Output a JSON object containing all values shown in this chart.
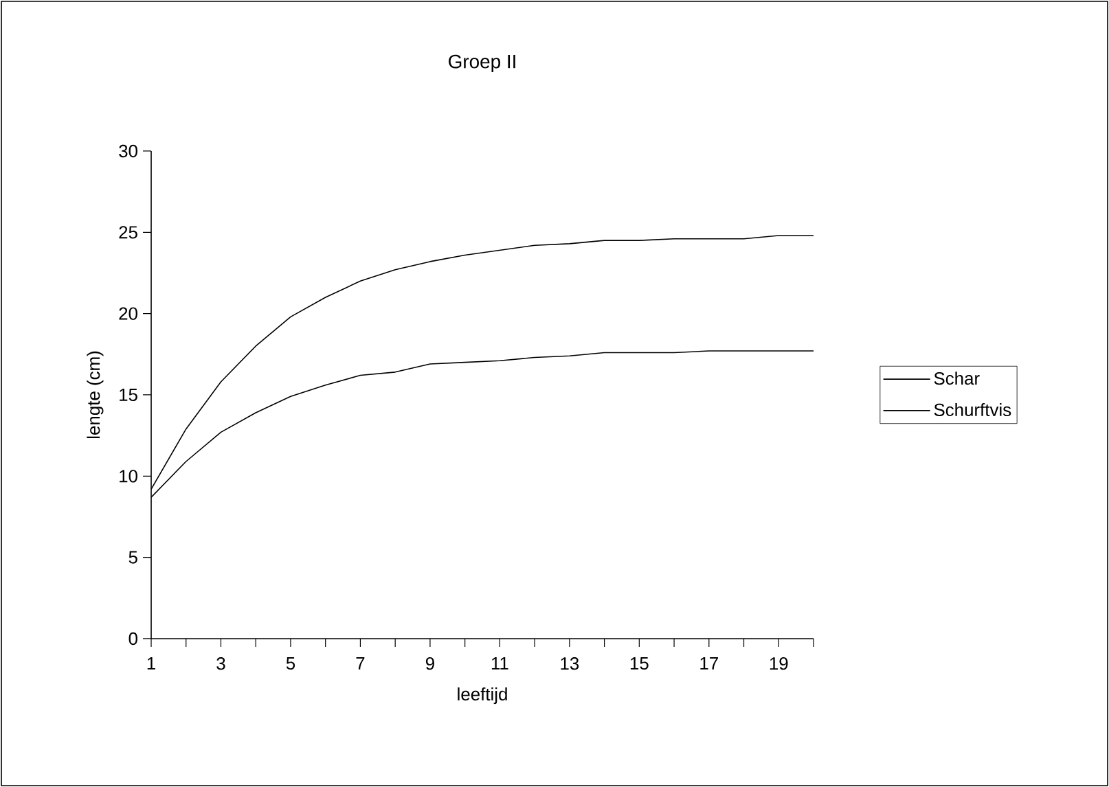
{
  "chart_data": {
    "type": "line",
    "title": "Groep II",
    "xlabel": "leeftijd",
    "ylabel": "lengte (cm)",
    "x": [
      1,
      2,
      3,
      4,
      5,
      6,
      7,
      8,
      9,
      10,
      11,
      12,
      13,
      14,
      15,
      16,
      17,
      18,
      19,
      20
    ],
    "xlim": [
      1,
      20
    ],
    "xticks": [
      1,
      {
        "value": 2,
        "label": null
      },
      3,
      {
        "value": 4,
        "label": null
      },
      5,
      {
        "value": 6,
        "label": null
      },
      7,
      {
        "value": 8,
        "label": null
      },
      9,
      {
        "value": 10,
        "label": null
      },
      11,
      {
        "value": 12,
        "label": null
      },
      13,
      {
        "value": 14,
        "label": null
      },
      15,
      {
        "value": 16,
        "label": null
      },
      17,
      {
        "value": 18,
        "label": null
      },
      19,
      {
        "value": 20,
        "label": null
      }
    ],
    "ylim": [
      0,
      30
    ],
    "yticks": [
      0,
      5,
      10,
      15,
      20,
      25,
      30
    ],
    "series": [
      {
        "name": "Schar",
        "color": "#000000",
        "values": [
          9.2,
          12.9,
          15.8,
          18.0,
          19.8,
          21.0,
          22.0,
          22.7,
          23.2,
          23.6,
          23.9,
          24.2,
          24.3,
          24.5,
          24.5,
          24.6,
          24.6,
          24.6,
          24.8,
          24.8
        ]
      },
      {
        "name": "Schurftvis",
        "color": "#000000",
        "values": [
          8.7,
          10.9,
          12.7,
          13.9,
          14.9,
          15.6,
          16.2,
          16.4,
          16.9,
          17.0,
          17.1,
          17.3,
          17.4,
          17.6,
          17.6,
          17.6,
          17.7,
          17.7,
          17.7,
          17.7
        ]
      }
    ],
    "grid": false,
    "legend": "right",
    "marker": "none",
    "line_style": "solid"
  }
}
